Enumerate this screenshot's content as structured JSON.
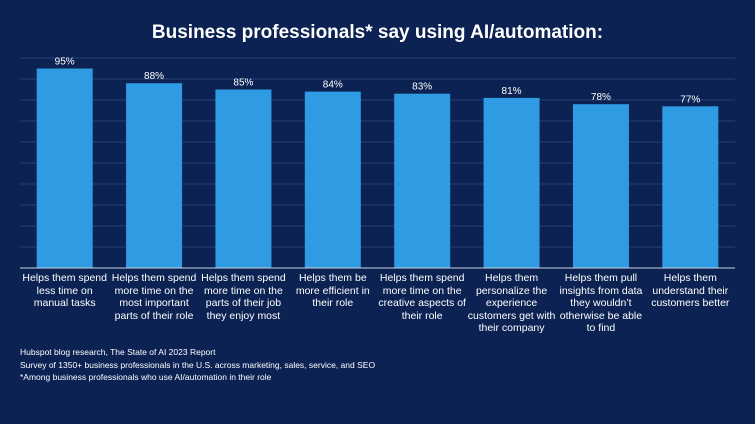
{
  "chart_data": {
    "type": "bar",
    "title": "Business professionals* say using AI/automation:",
    "categories": [
      "Helps them spend less time on manual tasks",
      "Helps them spend more time on the most important parts of their role",
      "Helps them spend more time on the parts of their job they enjoy most",
      "Helps them be more efficient in their role",
      "Helps them spend more time on the creative aspects of their role",
      "Helps them personalize the experience customers get with their company",
      "Helps them pull insights from data they wouldn’t otherwise be able to find",
      "Helps them understand their customers better"
    ],
    "values": [
      95,
      88,
      85,
      84,
      83,
      81,
      78,
      77
    ],
    "value_labels": [
      "95%",
      "88%",
      "85%",
      "84%",
      "83%",
      "81%",
      "78%",
      "77%"
    ],
    "ylim": [
      0,
      100
    ],
    "grid": true,
    "xlabel": "",
    "ylabel": ""
  },
  "footnotes": [
    "Hubspot blog research, The State of AI 2023 Report",
    "Survey of 1350+ business professionals in the U.S. across marketing, sales, service, and SEO",
    "*Among business professionals who use AI/automation in their role"
  ],
  "colors": {
    "background": "#0b2253",
    "bar": "#2f9be3",
    "grid": "#26427a",
    "axis": "#c9d2e3",
    "text": "#ffffff"
  }
}
